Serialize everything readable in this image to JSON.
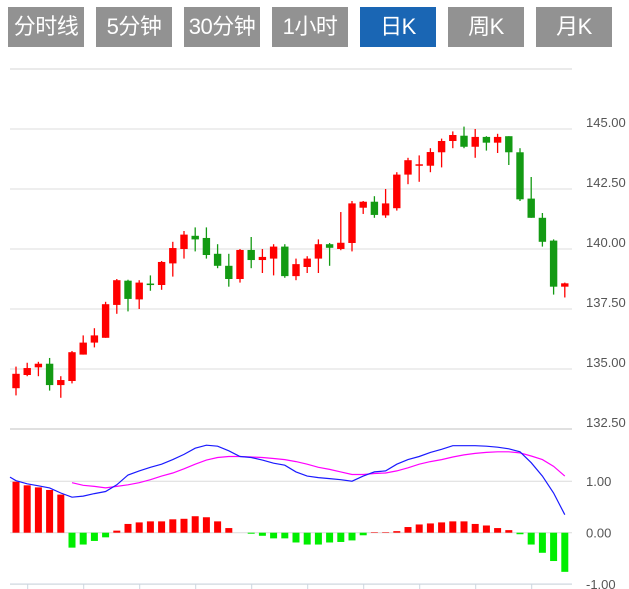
{
  "tabs": [
    {
      "label": "分时线",
      "active": false
    },
    {
      "label": "5分钟",
      "active": false
    },
    {
      "label": "30分钟",
      "active": false
    },
    {
      "label": "1小时",
      "active": false
    },
    {
      "label": "日K",
      "active": true
    },
    {
      "label": "周K",
      "active": false
    },
    {
      "label": "月K",
      "active": false
    }
  ],
  "colors": {
    "up": "#ff0000",
    "down": "#139a13",
    "hist_up": "#ff0000",
    "hist_down": "#00ee00",
    "dif": "#1a1aff",
    "dea": "#ff00ff",
    "active_tab": "#1a66b4",
    "tab": "#929292"
  },
  "chart_data": [
    {
      "type": "candlestick",
      "title": "日K",
      "y_ticks": [
        "145.00",
        "142.50",
        "140.00",
        "137.50",
        "135.00",
        "132.50"
      ],
      "y_tick_values": [
        145,
        142.5,
        140,
        137.5,
        135,
        132.5
      ],
      "ylim": [
        132.5,
        147.5
      ],
      "grid": true,
      "ohlc": [
        [
          134.2,
          135.1,
          133.9,
          134.8
        ],
        [
          134.75,
          135.26,
          134.7,
          135.04
        ],
        [
          135.07,
          135.3,
          134.7,
          135.22
        ],
        [
          135.22,
          135.46,
          134.1,
          134.33
        ],
        [
          134.33,
          134.7,
          133.8,
          134.54
        ],
        [
          134.5,
          135.75,
          134.4,
          135.7
        ],
        [
          135.6,
          136.4,
          135.6,
          136.1
        ],
        [
          136.1,
          136.7,
          135.9,
          136.4
        ],
        [
          136.3,
          137.8,
          136.3,
          137.7
        ],
        [
          137.67,
          138.75,
          137.3,
          138.7
        ],
        [
          138.68,
          138.72,
          137.4,
          137.92
        ],
        [
          137.9,
          138.7,
          137.5,
          138.6
        ],
        [
          138.56,
          138.9,
          138.26,
          138.5
        ],
        [
          138.5,
          139.5,
          138.3,
          139.46
        ],
        [
          139.4,
          140.3,
          138.85,
          140.04
        ],
        [
          140.0,
          140.75,
          139.6,
          140.6
        ],
        [
          140.55,
          140.9,
          139.9,
          140.4
        ],
        [
          140.46,
          140.9,
          139.6,
          139.75
        ],
        [
          139.8,
          140.2,
          139.2,
          139.3
        ],
        [
          139.3,
          139.8,
          138.43,
          138.75
        ],
        [
          138.75,
          140.0,
          138.6,
          139.96
        ],
        [
          139.96,
          140.5,
          139.2,
          139.54
        ],
        [
          139.54,
          140.0,
          139.0,
          139.67
        ],
        [
          139.6,
          140.2,
          138.9,
          140.1
        ],
        [
          140.1,
          140.2,
          138.8,
          138.87
        ],
        [
          138.87,
          139.6,
          138.7,
          139.37
        ],
        [
          139.25,
          139.7,
          139.0,
          139.6
        ],
        [
          139.6,
          140.4,
          139.0,
          140.2
        ],
        [
          140.2,
          140.25,
          139.3,
          140.05
        ],
        [
          140.0,
          141.54,
          139.95,
          140.26
        ],
        [
          140.25,
          142.0,
          139.9,
          141.9
        ],
        [
          141.72,
          142.0,
          141.46,
          141.97
        ],
        [
          141.97,
          142.2,
          141.3,
          141.42
        ],
        [
          141.4,
          142.5,
          141.3,
          141.9
        ],
        [
          141.7,
          143.2,
          141.6,
          143.1
        ],
        [
          143.1,
          143.8,
          142.7,
          143.7
        ],
        [
          143.47,
          143.9,
          142.8,
          143.53
        ],
        [
          143.47,
          144.2,
          143.2,
          144.04
        ],
        [
          144.03,
          144.6,
          143.4,
          144.5
        ],
        [
          144.5,
          144.9,
          144.2,
          144.75
        ],
        [
          144.72,
          145.1,
          144.2,
          144.26
        ],
        [
          144.26,
          145.0,
          143.8,
          144.67
        ],
        [
          144.67,
          144.7,
          144.1,
          144.43
        ],
        [
          144.43,
          144.8,
          144.0,
          144.67
        ],
        [
          144.7,
          144.7,
          143.5,
          144.03
        ],
        [
          144.03,
          144.2,
          142.0,
          142.07
        ],
        [
          142.1,
          143.0,
          141.3,
          141.3
        ],
        [
          141.3,
          141.5,
          140.1,
          140.3
        ],
        [
          140.35,
          140.4,
          138.1,
          138.43
        ],
        [
          138.43,
          138.6,
          137.98,
          138.57
        ]
      ]
    },
    {
      "type": "bar+line",
      "title": "MACD",
      "y_ticks": [
        "1.00",
        "0.00",
        "-1.00"
      ],
      "y_tick_values": [
        1,
        0,
        -1
      ],
      "ylim": [
        -1,
        2
      ],
      "histogram": [
        0.99,
        0.92,
        0.88,
        0.83,
        0.74,
        -0.29,
        -0.23,
        -0.16,
        -0.09,
        0.04,
        0.17,
        0.2,
        0.22,
        0.22,
        0.26,
        0.27,
        0.32,
        0.3,
        0.22,
        0.09,
        0,
        -0.02,
        -0.06,
        -0.11,
        -0.11,
        -0.19,
        -0.23,
        -0.23,
        -0.19,
        -0.18,
        -0.15,
        -0.05,
        0.01,
        0.01,
        0.03,
        0.11,
        0.16,
        0.18,
        0.2,
        0.22,
        0.22,
        0.17,
        0.14,
        0.09,
        0.05,
        -0.03,
        -0.23,
        -0.39,
        -0.55,
        -0.76
      ],
      "dif": [
        1.01,
        0.95,
        0.91,
        0.87,
        0.77,
        0.69,
        0.71,
        0.76,
        0.8,
        0.93,
        1.12,
        1.2,
        1.27,
        1.33,
        1.42,
        1.52,
        1.64,
        1.7,
        1.68,
        1.59,
        1.48,
        1.46,
        1.41,
        1.35,
        1.31,
        1.18,
        1.1,
        1.07,
        1.05,
        1.03,
        1.0,
        1.1,
        1.18,
        1.2,
        1.33,
        1.42,
        1.48,
        1.56,
        1.62,
        1.69,
        1.69,
        1.69,
        1.68,
        1.66,
        1.63,
        1.57,
        1.36,
        1.1,
        0.77,
        0.35
      ],
      "dea": [
        null,
        null,
        null,
        null,
        null,
        0.97,
        0.92,
        0.9,
        0.87,
        0.9,
        0.93,
        0.97,
        1.03,
        1.1,
        1.16,
        1.24,
        1.33,
        1.41,
        1.46,
        1.48,
        1.48,
        1.47,
        1.46,
        1.44,
        1.42,
        1.38,
        1.33,
        1.27,
        1.23,
        1.18,
        1.13,
        1.13,
        1.15,
        1.16,
        1.2,
        1.26,
        1.33,
        1.38,
        1.42,
        1.47,
        1.51,
        1.54,
        1.56,
        1.57,
        1.57,
        1.55,
        1.49,
        1.42,
        1.29,
        1.1
      ]
    }
  ]
}
